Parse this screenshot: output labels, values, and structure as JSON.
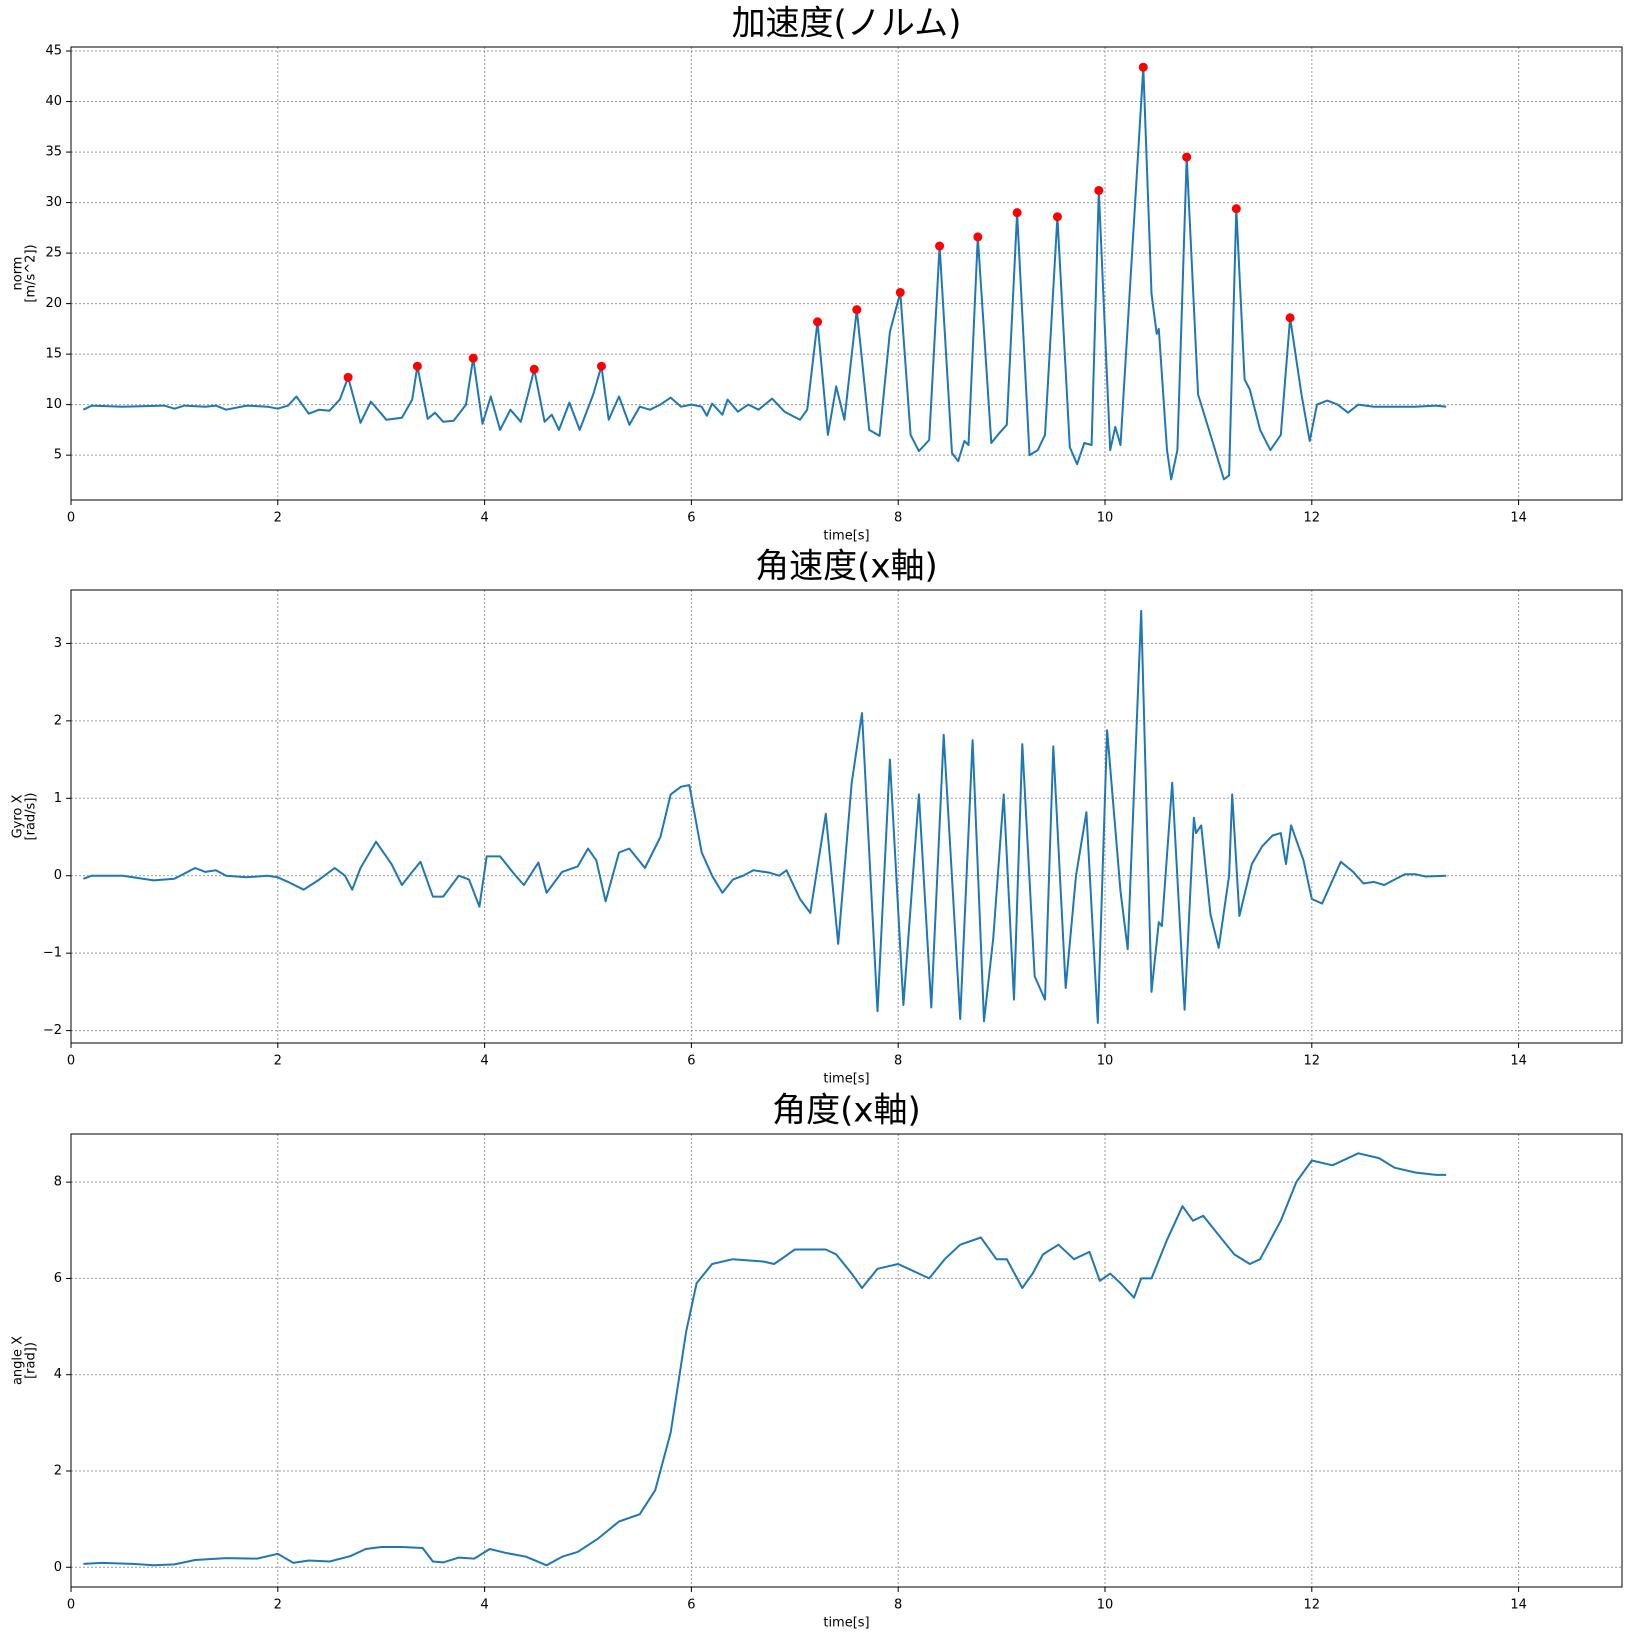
{
  "chart_data": [
    {
      "type": "line",
      "title": "加速度(ノルム)",
      "xlabel": "time[s]",
      "ylabel": [
        "norm",
        "[m/s^2])"
      ],
      "color": "#1f77b4",
      "grid": true,
      "xlim": [
        0,
        15
      ],
      "ylim": [
        0.56,
        45.4
      ],
      "xticks": [
        0,
        2,
        4,
        6,
        8,
        10,
        12,
        14
      ],
      "yticks": [
        5,
        10,
        15,
        20,
        25,
        30,
        35,
        40,
        45
      ],
      "x": [
        0.12,
        0.2,
        0.5,
        0.9,
        1.0,
        1.1,
        1.3,
        1.4,
        1.5,
        1.7,
        1.9,
        2.0,
        2.1,
        2.18,
        2.3,
        2.4,
        2.5,
        2.6,
        2.68,
        2.8,
        2.9,
        3.05,
        3.2,
        3.3,
        3.35,
        3.45,
        3.52,
        3.6,
        3.7,
        3.82,
        3.89,
        3.98,
        4.06,
        4.15,
        4.25,
        4.35,
        4.42,
        4.48,
        4.58,
        4.65,
        4.72,
        4.82,
        4.92,
        5.05,
        5.13,
        5.2,
        5.3,
        5.4,
        5.5,
        5.6,
        5.7,
        5.8,
        5.9,
        6.0,
        6.1,
        6.15,
        6.2,
        6.3,
        6.35,
        6.45,
        6.55,
        6.65,
        6.78,
        6.9,
        7.05,
        7.12,
        7.22,
        7.32,
        7.4,
        7.48,
        7.6,
        7.72,
        7.82,
        7.92,
        8.02,
        8.12,
        8.2,
        8.3,
        8.4,
        8.52,
        8.58,
        8.64,
        8.68,
        8.77,
        8.9,
        8.98,
        9.05,
        9.15,
        9.27,
        9.35,
        9.42,
        9.54,
        9.66,
        9.73,
        9.8,
        9.87,
        9.94,
        10.05,
        10.1,
        10.15,
        10.37,
        10.45,
        10.5,
        10.52,
        10.6,
        10.64,
        10.7,
        10.79,
        10.9,
        11.05,
        11.15,
        11.2,
        11.27,
        11.35,
        11.4,
        11.5,
        11.6,
        11.7,
        11.79,
        11.9,
        11.98,
        12.05,
        12.15,
        12.25,
        12.35,
        12.45,
        12.6,
        12.8,
        13.0,
        13.2,
        13.3
      ],
      "values": [
        9.5,
        9.9,
        9.8,
        9.9,
        9.6,
        9.9,
        9.8,
        9.9,
        9.5,
        9.9,
        9.8,
        9.6,
        9.9,
        10.8,
        9.1,
        9.5,
        9.4,
        10.5,
        12.7,
        8.2,
        10.3,
        8.5,
        8.7,
        10.5,
        13.8,
        8.6,
        9.2,
        8.3,
        8.4,
        10.0,
        14.6,
        8.1,
        10.8,
        7.5,
        9.5,
        8.3,
        11.0,
        13.5,
        8.3,
        9.0,
        7.5,
        10.2,
        7.5,
        11.0,
        13.8,
        8.5,
        10.8,
        8.0,
        9.8,
        9.5,
        10.0,
        10.7,
        9.8,
        10.0,
        9.8,
        8.9,
        10.1,
        9.0,
        10.5,
        9.3,
        10.0,
        9.5,
        10.6,
        9.3,
        8.5,
        9.5,
        18.2,
        7.0,
        11.8,
        8.5,
        19.4,
        7.5,
        6.9,
        17.2,
        21.1,
        7.0,
        5.4,
        6.5,
        25.7,
        5.2,
        4.4,
        6.4,
        6.0,
        26.6,
        6.2,
        7.2,
        8.0,
        29.0,
        5.0,
        5.5,
        7.0,
        28.6,
        5.8,
        4.1,
        6.2,
        6.0,
        31.2,
        5.5,
        7.8,
        6.0,
        43.4,
        21.0,
        17.0,
        17.5,
        5.5,
        2.6,
        5.5,
        34.5,
        11.0,
        6.0,
        2.6,
        3.0,
        29.4,
        12.5,
        11.5,
        7.5,
        5.5,
        7.0,
        18.6,
        11.0,
        6.4,
        10.0,
        10.4,
        10.0,
        9.2,
        10.0,
        9.8,
        9.8,
        9.8,
        9.9,
        9.8
      ],
      "markers": {
        "color": "#ff0000",
        "x": [
          2.68,
          3.35,
          3.89,
          4.48,
          5.13,
          7.22,
          7.6,
          8.02,
          8.4,
          8.77,
          9.15,
          9.54,
          9.94,
          10.37,
          10.79,
          11.27,
          11.79
        ],
        "values": [
          12.7,
          13.8,
          14.6,
          13.5,
          13.8,
          18.2,
          19.4,
          21.1,
          25.7,
          26.6,
          29.0,
          28.6,
          31.2,
          43.4,
          34.5,
          29.4,
          18.6
        ]
      }
    },
    {
      "type": "line",
      "title": "角速度(x軸)",
      "xlabel": "time[s]",
      "ylabel": [
        "Gyro X",
        "[rad/s])"
      ],
      "color": "#1f77b4",
      "grid": true,
      "xlim": [
        0,
        15
      ],
      "ylim": [
        -2.16,
        3.69
      ],
      "xticks": [
        0,
        2,
        4,
        6,
        8,
        10,
        12,
        14
      ],
      "yticks": [
        {
          "value": -2,
          "label": "−2"
        },
        {
          "value": -1,
          "label": "−1"
        },
        0,
        1,
        2,
        3
      ],
      "x": [
        0.12,
        0.2,
        0.5,
        0.8,
        1.0,
        1.2,
        1.3,
        1.4,
        1.5,
        1.7,
        1.9,
        2.0,
        2.1,
        2.25,
        2.4,
        2.55,
        2.65,
        2.72,
        2.8,
        2.95,
        3.1,
        3.2,
        3.3,
        3.38,
        3.5,
        3.6,
        3.75,
        3.85,
        3.95,
        4.02,
        4.15,
        4.3,
        4.38,
        4.52,
        4.6,
        4.75,
        4.9,
        5.0,
        5.08,
        5.17,
        5.3,
        5.4,
        5.55,
        5.7,
        5.8,
        5.9,
        5.98,
        6.1,
        6.2,
        6.3,
        6.4,
        6.5,
        6.6,
        6.75,
        6.85,
        6.92,
        7.05,
        7.15,
        7.3,
        7.42,
        7.55,
        7.65,
        7.8,
        7.92,
        8.05,
        8.2,
        8.32,
        8.44,
        8.6,
        8.72,
        8.83,
        8.92,
        9.02,
        9.12,
        9.2,
        9.32,
        9.42,
        9.5,
        9.62,
        9.72,
        9.82,
        9.93,
        10.02,
        10.15,
        10.22,
        10.35,
        10.45,
        10.52,
        10.55,
        10.65,
        10.77,
        10.86,
        10.88,
        10.93,
        11.02,
        11.1,
        11.2,
        11.23,
        11.3,
        11.42,
        11.52,
        11.62,
        11.7,
        11.75,
        11.8,
        11.92,
        12.0,
        12.1,
        12.28,
        12.4,
        12.5,
        12.6,
        12.7,
        12.9,
        13.0,
        13.1,
        13.3
      ],
      "values": [
        -0.04,
        0.0,
        0.0,
        -0.06,
        -0.04,
        0.1,
        0.05,
        0.07,
        0.0,
        -0.02,
        0.0,
        -0.02,
        -0.08,
        -0.18,
        -0.05,
        0.1,
        0.0,
        -0.18,
        0.1,
        0.44,
        0.15,
        -0.12,
        0.05,
        0.18,
        -0.27,
        -0.27,
        0.0,
        -0.05,
        -0.4,
        0.25,
        0.25,
        0.0,
        -0.12,
        0.17,
        -0.22,
        0.05,
        0.12,
        0.35,
        0.2,
        -0.33,
        0.3,
        0.35,
        0.1,
        0.5,
        1.05,
        1.15,
        1.17,
        0.3,
        0.0,
        -0.22,
        -0.05,
        0.0,
        0.07,
        0.04,
        0.0,
        0.07,
        -0.3,
        -0.48,
        0.8,
        -0.88,
        1.2,
        2.1,
        -1.75,
        1.5,
        -1.67,
        1.05,
        -1.7,
        1.82,
        -1.85,
        1.75,
        -1.88,
        -0.8,
        1.05,
        -1.6,
        1.7,
        -1.3,
        -1.6,
        1.67,
        -1.45,
        0.0,
        0.82,
        -1.9,
        1.88,
        -0.2,
        -0.95,
        3.42,
        -1.5,
        -0.6,
        -0.65,
        1.2,
        -1.73,
        0.75,
        0.55,
        0.65,
        -0.5,
        -0.93,
        0.0,
        1.05,
        -0.52,
        0.15,
        0.38,
        0.52,
        0.55,
        0.15,
        0.65,
        0.2,
        -0.3,
        -0.36,
        0.18,
        0.05,
        -0.1,
        -0.08,
        -0.12,
        0.02,
        0.02,
        -0.01,
        0.0
      ]
    },
    {
      "type": "line",
      "title": "角度(x軸)",
      "xlabel": "time[s]",
      "ylabel": [
        "angle X",
        "[rad])"
      ],
      "color": "#1f77b4",
      "grid": true,
      "xlim": [
        0,
        15
      ],
      "ylim": [
        -0.41,
        9.0
      ],
      "xticks": [
        0,
        2,
        4,
        6,
        8,
        10,
        12,
        14
      ],
      "yticks": [
        0,
        2,
        4,
        6,
        8
      ],
      "x": [
        0.12,
        0.3,
        0.6,
        0.8,
        1.0,
        1.2,
        1.5,
        1.8,
        2.0,
        2.15,
        2.3,
        2.5,
        2.7,
        2.85,
        3.0,
        3.2,
        3.4,
        3.5,
        3.6,
        3.75,
        3.9,
        4.05,
        4.2,
        4.4,
        4.6,
        4.75,
        4.9,
        5.1,
        5.3,
        5.5,
        5.65,
        5.8,
        5.95,
        6.05,
        6.2,
        6.4,
        6.7,
        6.8,
        6.9,
        7.0,
        7.3,
        7.4,
        7.55,
        7.65,
        7.8,
        8.0,
        8.1,
        8.2,
        8.3,
        8.45,
        8.6,
        8.8,
        8.95,
        9.05,
        9.2,
        9.3,
        9.4,
        9.55,
        9.7,
        9.85,
        9.95,
        10.05,
        10.15,
        10.28,
        10.35,
        10.45,
        10.6,
        10.75,
        10.85,
        10.95,
        11.1,
        11.25,
        11.4,
        11.5,
        11.7,
        11.85,
        12.0,
        12.2,
        12.45,
        12.65,
        12.8,
        13.0,
        13.2,
        13.3
      ],
      "values": [
        0.07,
        0.09,
        0.07,
        0.04,
        0.06,
        0.15,
        0.19,
        0.18,
        0.28,
        0.09,
        0.14,
        0.12,
        0.23,
        0.38,
        0.42,
        0.42,
        0.4,
        0.12,
        0.1,
        0.2,
        0.18,
        0.38,
        0.3,
        0.22,
        0.04,
        0.22,
        0.32,
        0.6,
        0.95,
        1.1,
        1.6,
        2.8,
        4.9,
        5.9,
        6.3,
        6.4,
        6.35,
        6.3,
        6.45,
        6.6,
        6.6,
        6.5,
        6.1,
        5.8,
        6.2,
        6.3,
        6.2,
        6.1,
        6.0,
        6.4,
        6.7,
        6.85,
        6.4,
        6.4,
        5.8,
        6.1,
        6.5,
        6.7,
        6.4,
        6.55,
        5.95,
        6.1,
        5.9,
        5.6,
        6.0,
        6.0,
        6.8,
        7.5,
        7.2,
        7.3,
        6.9,
        6.5,
        6.3,
        6.4,
        7.2,
        8.0,
        8.45,
        8.35,
        8.6,
        8.5,
        8.3,
        8.2,
        8.15,
        8.15
      ]
    }
  ]
}
